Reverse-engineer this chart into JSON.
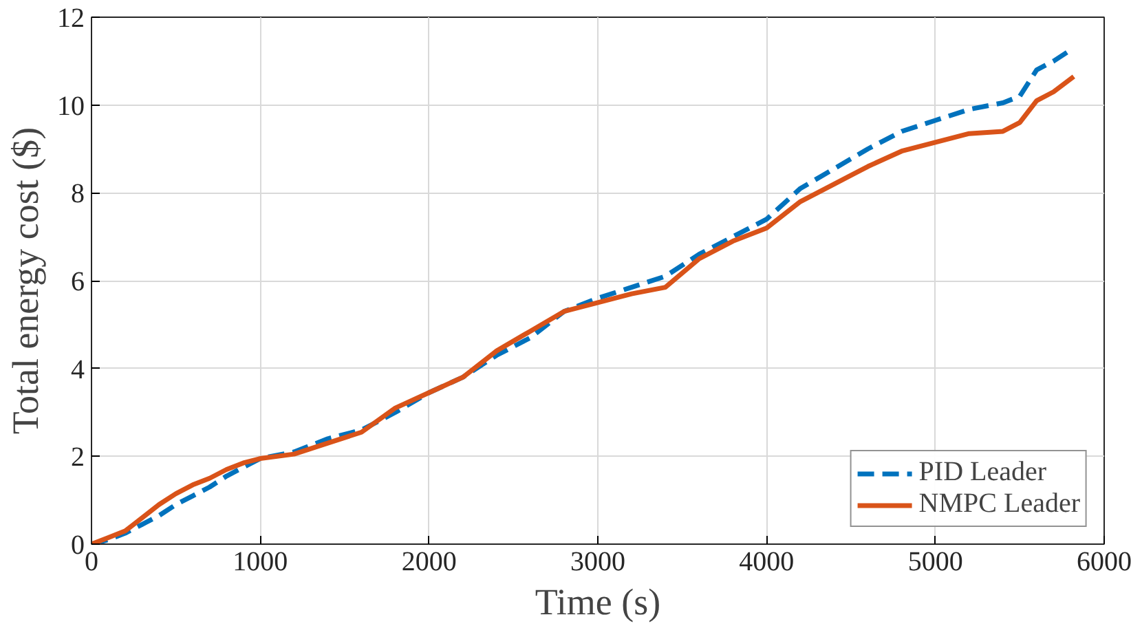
{
  "chart_data": {
    "type": "line",
    "xlabel": "Time (s)",
    "ylabel": "Total energy cost ($)",
    "x": [
      0,
      100,
      200,
      300,
      400,
      500,
      600,
      700,
      800,
      900,
      1000,
      1200,
      1400,
      1600,
      1800,
      2000,
      2200,
      2400,
      2600,
      2800,
      3000,
      3200,
      3400,
      3600,
      3800,
      4000,
      4200,
      4400,
      4600,
      4800,
      5000,
      5200,
      5400,
      5500,
      5600,
      5700,
      5820
    ],
    "series": [
      {
        "name": "PID Leader",
        "color": "#0072bd",
        "line_style": "dashed",
        "values": [
          0,
          0.1,
          0.25,
          0.45,
          0.65,
          0.9,
          1.1,
          1.3,
          1.55,
          1.75,
          1.95,
          2.1,
          2.4,
          2.6,
          3.0,
          3.45,
          3.8,
          4.3,
          4.7,
          5.3,
          5.6,
          5.85,
          6.1,
          6.6,
          7.0,
          7.4,
          8.1,
          8.55,
          9.0,
          9.4,
          9.65,
          9.9,
          10.05,
          10.2,
          10.8,
          11.0,
          11.3
        ]
      },
      {
        "name": "NMPC Leader",
        "color": "#d95319",
        "line_style": "solid",
        "values": [
          0,
          0.15,
          0.3,
          0.6,
          0.9,
          1.15,
          1.35,
          1.5,
          1.7,
          1.85,
          1.95,
          2.05,
          2.3,
          2.55,
          3.1,
          3.45,
          3.8,
          4.4,
          4.85,
          5.3,
          5.5,
          5.7,
          5.85,
          6.5,
          6.9,
          7.2,
          7.8,
          8.2,
          8.6,
          8.95,
          9.15,
          9.35,
          9.4,
          9.6,
          10.1,
          10.3,
          10.65
        ]
      }
    ],
    "xlim": [
      0,
      6000
    ],
    "xticks": [
      0,
      1000,
      2000,
      3000,
      4000,
      5000,
      6000
    ],
    "ylim": [
      0,
      12
    ],
    "yticks": [
      0,
      2,
      4,
      6,
      8,
      10,
      12
    ],
    "grid": true,
    "legend": "bottom right"
  }
}
